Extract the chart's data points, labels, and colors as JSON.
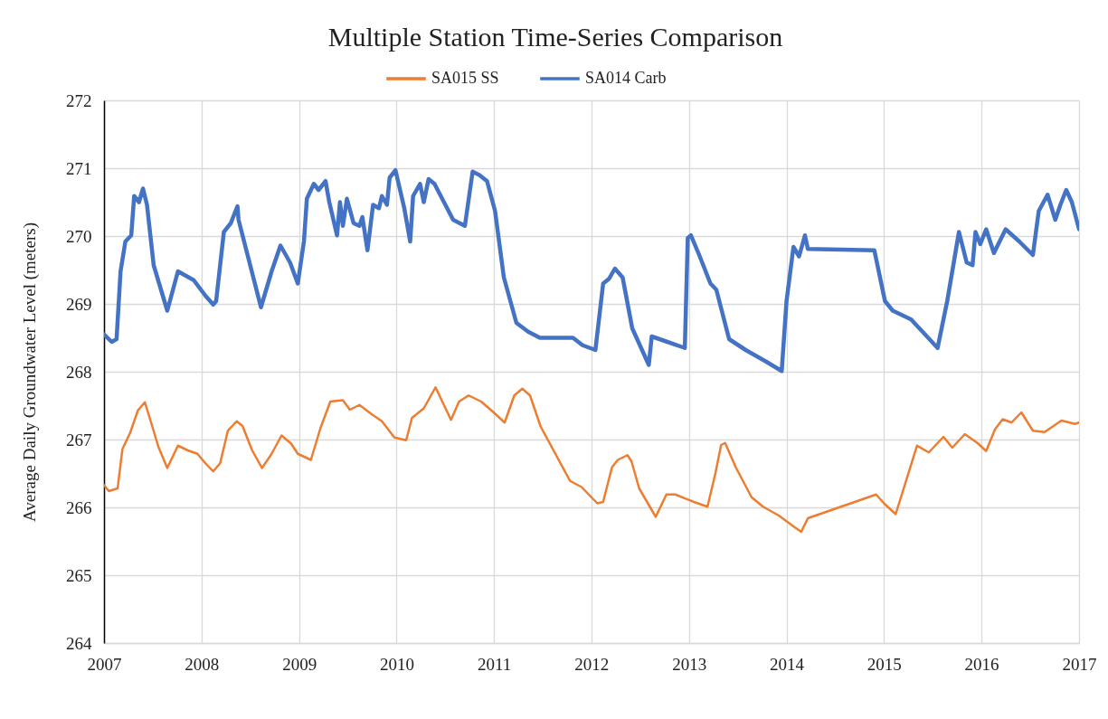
{
  "chart_data": {
    "type": "line",
    "title": "Multiple Station Time-Series Comparison",
    "ylabel": "Average Daily Groundwater Level (meters)",
    "xlim": [
      "2007-01-01",
      "2017-01-01"
    ],
    "xticks": [
      "2007",
      "2008",
      "2009",
      "2010",
      "2011",
      "2012",
      "2013",
      "2014",
      "2015",
      "2016",
      "2017"
    ],
    "ylim": [
      264,
      272
    ],
    "yticks": [
      264,
      265,
      266,
      267,
      268,
      269,
      270,
      271,
      272
    ],
    "grid": true,
    "legend": "top",
    "series": [
      {
        "name": "SA015 SS",
        "color": "#ed7d31",
        "x": [
          "2007-01-01",
          "2007-01-19",
          "2007-02-21",
          "2007-03-11",
          "2007-04-09",
          "2007-05-08",
          "2007-06-03",
          "2007-06-25",
          "2007-07-24",
          "2007-08-26",
          "2007-10-05",
          "2007-11-11",
          "2007-12-17",
          "2008-01-16",
          "2008-02-14",
          "2008-03-11",
          "2008-04-09",
          "2008-05-12",
          "2008-06-03",
          "2008-07-09",
          "2008-08-15",
          "2008-09-20",
          "2008-10-27",
          "2008-12-02",
          "2008-12-27",
          "2009-02-14",
          "2009-03-22",
          "2009-04-28",
          "2009-06-14",
          "2009-07-10",
          "2009-08-15",
          "2009-10-01",
          "2009-11-07",
          "2009-12-24",
          "2010-02-06",
          "2010-02-28",
          "2010-04-13",
          "2010-05-27",
          "2010-07-24",
          "2010-08-23",
          "2010-09-28",
          "2010-11-14",
          "2010-12-28",
          "2011-02-10",
          "2011-03-18",
          "2011-04-17",
          "2011-05-16",
          "2011-06-25",
          "2011-10-13",
          "2011-11-25",
          "2012-01-23",
          "2012-02-14",
          "2012-03-18",
          "2012-04-09",
          "2012-05-15",
          "2012-05-30",
          "2012-06-28",
          "2012-08-29",
          "2012-10-08",
          "2012-11-10",
          "2013-01-19",
          "2013-03-11",
          "2013-04-10",
          "2013-05-01",
          "2013-05-16",
          "2013-06-25",
          "2013-08-23",
          "2013-10-05",
          "2013-12-03",
          "2014-01-27",
          "2014-02-25",
          "2014-03-22",
          "2014-12-03",
          "2015-01-01",
          "2015-02-14",
          "2015-05-05",
          "2015-06-18",
          "2015-08-12",
          "2015-09-14",
          "2015-10-31",
          "2015-12-17",
          "2016-01-19",
          "2016-02-21",
          "2016-03-21",
          "2016-04-23",
          "2016-05-30",
          "2016-07-12",
          "2016-08-25",
          "2016-10-27",
          "2016-12-17",
          "2017-01-01"
        ],
        "values": [
          266.33,
          266.24,
          266.28,
          266.86,
          267.1,
          267.43,
          267.55,
          267.27,
          266.89,
          266.58,
          266.91,
          266.84,
          266.79,
          266.65,
          266.53,
          266.65,
          267.13,
          267.27,
          267.2,
          266.84,
          266.58,
          266.79,
          267.06,
          266.94,
          266.79,
          266.7,
          267.17,
          267.56,
          267.58,
          267.44,
          267.51,
          267.37,
          267.27,
          267.03,
          266.99,
          267.32,
          267.46,
          267.77,
          267.29,
          267.56,
          267.65,
          267.56,
          267.41,
          267.25,
          267.65,
          267.75,
          267.65,
          267.19,
          266.39,
          266.3,
          266.06,
          266.08,
          266.59,
          266.7,
          266.77,
          266.68,
          266.28,
          265.86,
          266.19,
          266.19,
          266.08,
          266.01,
          266.51,
          266.92,
          266.95,
          266.59,
          266.15,
          266.01,
          265.88,
          265.72,
          265.64,
          265.84,
          266.19,
          266.06,
          265.9,
          266.91,
          266.81,
          267.04,
          266.88,
          267.08,
          266.95,
          266.83,
          267.15,
          267.3,
          267.25,
          267.4,
          267.13,
          267.11,
          267.28,
          267.23,
          267.25
        ]
      },
      {
        "name": "SA014 Carb",
        "color": "#4472c4",
        "x": [
          "2007-01-01",
          "2007-01-30",
          "2007-02-17",
          "2007-03-04",
          "2007-03-22",
          "2007-04-13",
          "2007-04-24",
          "2007-05-12",
          "2007-05-27",
          "2007-06-11",
          "2007-07-06",
          "2007-08-26",
          "2007-10-05",
          "2007-12-03",
          "2008-01-16",
          "2008-02-14",
          "2008-02-25",
          "2008-03-25",
          "2008-04-20",
          "2008-05-15",
          "2008-05-19",
          "2008-08-11",
          "2008-09-20",
          "2008-10-23",
          "2008-11-28",
          "2008-12-27",
          "2009-01-19",
          "2009-01-30",
          "2009-02-25",
          "2009-03-15",
          "2009-04-10",
          "2009-04-24",
          "2009-05-23",
          "2009-06-03",
          "2009-06-14",
          "2009-06-29",
          "2009-07-24",
          "2009-08-15",
          "2009-08-26",
          "2009-09-14",
          "2009-10-05",
          "2009-10-27",
          "2009-11-07",
          "2009-11-26",
          "2009-12-06",
          "2009-12-28",
          "2010-01-30",
          "2010-02-21",
          "2010-03-04",
          "2010-03-30",
          "2010-04-13",
          "2010-05-01",
          "2010-05-23",
          "2010-08-01",
          "2010-09-14",
          "2010-10-13",
          "2010-11-07",
          "2010-12-06",
          "2011-01-05",
          "2011-02-07",
          "2011-03-26",
          "2011-05-09",
          "2011-06-22",
          "2011-10-24",
          "2011-11-29",
          "2012-01-16",
          "2012-02-14",
          "2012-03-07",
          "2012-03-29",
          "2012-04-27",
          "2012-06-02",
          "2012-08-03",
          "2012-08-14",
          "2012-09-27",
          "2012-12-16",
          "2012-12-27",
          "2013-01-08",
          "2013-02-10",
          "2013-03-22",
          "2013-04-13",
          "2013-05-31",
          "2013-08-01",
          "2013-10-16",
          "2013-12-14",
          "2014-01-01",
          "2014-01-27",
          "2014-02-17",
          "2014-03-11",
          "2014-03-22",
          "2014-11-26",
          "2015-01-05",
          "2015-02-03",
          "2015-04-13",
          "2015-07-21",
          "2015-08-26",
          "2015-10-09",
          "2015-11-07",
          "2015-11-29",
          "2015-12-10",
          "2015-12-28",
          "2016-01-19",
          "2016-02-17",
          "2016-04-01",
          "2016-05-22",
          "2016-07-12",
          "2016-08-03",
          "2016-09-05",
          "2016-10-04",
          "2016-10-23",
          "2016-11-14",
          "2016-12-05",
          "2017-01-01"
        ],
        "values": [
          268.55,
          268.44,
          268.48,
          269.48,
          269.92,
          270.01,
          270.59,
          270.5,
          270.7,
          270.46,
          269.57,
          268.9,
          269.48,
          269.35,
          269.12,
          268.99,
          269.04,
          270.06,
          270.19,
          270.44,
          270.24,
          268.95,
          269.48,
          269.86,
          269.61,
          269.3,
          269.92,
          270.55,
          270.77,
          270.68,
          270.81,
          270.5,
          270.01,
          270.5,
          270.15,
          270.55,
          270.19,
          270.15,
          270.28,
          269.79,
          270.46,
          270.41,
          270.59,
          270.46,
          270.86,
          270.97,
          270.41,
          269.92,
          270.59,
          270.77,
          270.5,
          270.84,
          270.77,
          270.24,
          270.15,
          270.95,
          270.9,
          270.81,
          270.37,
          269.39,
          268.72,
          268.59,
          268.5,
          268.5,
          268.39,
          268.32,
          269.3,
          269.37,
          269.52,
          269.39,
          268.64,
          268.1,
          268.52,
          268.46,
          268.35,
          269.97,
          270.01,
          269.7,
          269.3,
          269.21,
          268.48,
          268.32,
          268.15,
          268.01,
          269.04,
          269.84,
          269.7,
          270.01,
          269.81,
          269.79,
          269.04,
          268.9,
          268.77,
          268.35,
          269.04,
          270.06,
          269.61,
          269.57,
          270.06,
          269.88,
          270.1,
          269.75,
          270.1,
          269.92,
          269.72,
          270.37,
          270.61,
          270.24,
          270.46,
          270.68,
          270.5,
          270.1
        ]
      }
    ]
  }
}
